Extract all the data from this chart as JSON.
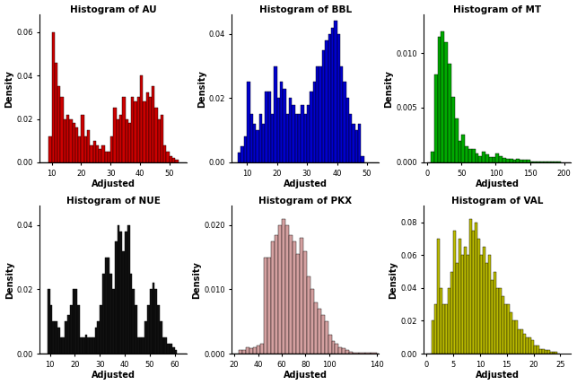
{
  "subplots": [
    {
      "title": "Histogram of AU",
      "xlabel": "Adjusted",
      "ylabel": "Density",
      "color": "#CC0000",
      "edgecolor": "#000000",
      "xlim": [
        6,
        56
      ],
      "ylim": [
        0,
        0.068
      ],
      "yticks": [
        0.0,
        0.02,
        0.04,
        0.06
      ],
      "ytick_labels": [
        "0.00",
        "0.02",
        "0.04",
        "0.06"
      ],
      "xticks": [
        10,
        20,
        30,
        40,
        50
      ],
      "bin_edges": [
        6,
        7,
        8,
        9,
        10,
        11,
        12,
        13,
        14,
        15,
        16,
        17,
        18,
        19,
        20,
        21,
        22,
        23,
        24,
        25,
        26,
        27,
        28,
        29,
        30,
        31,
        32,
        33,
        34,
        35,
        36,
        37,
        38,
        39,
        40,
        41,
        42,
        43,
        44,
        45,
        46,
        47,
        48,
        49,
        50,
        51,
        52,
        53,
        54,
        55,
        56
      ],
      "bin_heights": [
        0.0,
        0.0,
        0.0,
        0.012,
        0.06,
        0.046,
        0.035,
        0.03,
        0.02,
        0.022,
        0.02,
        0.018,
        0.016,
        0.012,
        0.022,
        0.012,
        0.015,
        0.008,
        0.01,
        0.008,
        0.006,
        0.008,
        0.005,
        0.005,
        0.012,
        0.025,
        0.02,
        0.022,
        0.03,
        0.02,
        0.018,
        0.03,
        0.028,
        0.03,
        0.04,
        0.028,
        0.032,
        0.03,
        0.035,
        0.025,
        0.02,
        0.022,
        0.008,
        0.005,
        0.003,
        0.002,
        0.001,
        0.0,
        0.0,
        0.0
      ]
    },
    {
      "title": "Histogram of BBL",
      "xlabel": "Adjusted",
      "ylabel": "Density",
      "color": "#0000CC",
      "edgecolor": "#000000",
      "xlim": [
        5,
        54
      ],
      "ylim": [
        0,
        0.046
      ],
      "yticks": [
        0.0,
        0.02,
        0.04
      ],
      "ytick_labels": [
        "0.00",
        "0.02",
        "0.04"
      ],
      "xticks": [
        10,
        20,
        30,
        40,
        50
      ],
      "bin_edges": [
        5,
        6,
        7,
        8,
        9,
        10,
        11,
        12,
        13,
        14,
        15,
        16,
        17,
        18,
        19,
        20,
        21,
        22,
        23,
        24,
        25,
        26,
        27,
        28,
        29,
        30,
        31,
        32,
        33,
        34,
        35,
        36,
        37,
        38,
        39,
        40,
        41,
        42,
        43,
        44,
        45,
        46,
        47,
        48,
        49,
        50,
        51,
        52,
        53,
        54
      ],
      "bin_heights": [
        0.0,
        0.0,
        0.003,
        0.005,
        0.008,
        0.025,
        0.015,
        0.012,
        0.01,
        0.015,
        0.012,
        0.022,
        0.022,
        0.015,
        0.03,
        0.02,
        0.025,
        0.023,
        0.015,
        0.02,
        0.018,
        0.015,
        0.015,
        0.018,
        0.015,
        0.018,
        0.022,
        0.025,
        0.03,
        0.03,
        0.035,
        0.038,
        0.04,
        0.042,
        0.044,
        0.04,
        0.03,
        0.025,
        0.02,
        0.015,
        0.012,
        0.01,
        0.012,
        0.002,
        0.0,
        0.0,
        0.0,
        0.0,
        0.0
      ]
    },
    {
      "title": "Histogram of MT",
      "xlabel": "Adjusted",
      "ylabel": "Density",
      "color": "#00AA00",
      "edgecolor": "#000000",
      "xlim": [
        -5,
        210
      ],
      "ylim": [
        0,
        0.0135
      ],
      "yticks": [
        0.0,
        0.005,
        0.01
      ],
      "ytick_labels": [
        "0.000",
        "0.005",
        "0.010"
      ],
      "xticks": [
        0,
        50,
        100,
        150,
        200
      ],
      "bin_edges": [
        0,
        5,
        10,
        15,
        20,
        25,
        30,
        35,
        40,
        45,
        50,
        55,
        60,
        65,
        70,
        75,
        80,
        85,
        90,
        95,
        100,
        105,
        110,
        115,
        120,
        125,
        130,
        135,
        140,
        145,
        150,
        155,
        160,
        165,
        170,
        175,
        180,
        185,
        190,
        195,
        200,
        205,
        210
      ],
      "bin_heights": [
        0.0,
        0.001,
        0.008,
        0.0115,
        0.012,
        0.011,
        0.009,
        0.006,
        0.004,
        0.002,
        0.0025,
        0.0015,
        0.0012,
        0.0012,
        0.0008,
        0.0006,
        0.001,
        0.0007,
        0.0005,
        0.0005,
        0.0008,
        0.0006,
        0.0004,
        0.0003,
        0.0003,
        0.0002,
        0.0003,
        0.0002,
        0.0002,
        0.0002,
        0.0001,
        0.0001,
        0.0001,
        0.0001,
        0.0001,
        0.0001,
        0.0001,
        0.0001,
        0.0001,
        0.0,
        0.0,
        0.0
      ]
    },
    {
      "title": "Histogram of NUE",
      "xlabel": "Adjusted",
      "ylabel": "Density",
      "color": "#111111",
      "edgecolor": "#000000",
      "xlim": [
        6,
        65
      ],
      "ylim": [
        0,
        0.046
      ],
      "yticks": [
        0.0,
        0.02,
        0.04
      ],
      "ytick_labels": [
        "0.00",
        "0.02",
        "0.04"
      ],
      "xticks": [
        10,
        20,
        30,
        40,
        50,
        60
      ],
      "bin_edges": [
        6,
        7,
        8,
        9,
        10,
        11,
        12,
        13,
        14,
        15,
        16,
        17,
        18,
        19,
        20,
        21,
        22,
        23,
        24,
        25,
        26,
        27,
        28,
        29,
        30,
        31,
        32,
        33,
        34,
        35,
        36,
        37,
        38,
        39,
        40,
        41,
        42,
        43,
        44,
        45,
        46,
        47,
        48,
        49,
        50,
        51,
        52,
        53,
        54,
        55,
        56,
        57,
        58,
        59,
        60,
        61,
        62,
        63,
        64,
        65
      ],
      "bin_heights": [
        0.0,
        0.0,
        0.0,
        0.02,
        0.015,
        0.01,
        0.01,
        0.008,
        0.005,
        0.005,
        0.01,
        0.012,
        0.015,
        0.02,
        0.02,
        0.015,
        0.005,
        0.005,
        0.006,
        0.005,
        0.005,
        0.005,
        0.008,
        0.01,
        0.015,
        0.025,
        0.03,
        0.03,
        0.025,
        0.02,
        0.035,
        0.04,
        0.038,
        0.032,
        0.038,
        0.04,
        0.025,
        0.02,
        0.015,
        0.005,
        0.005,
        0.005,
        0.01,
        0.015,
        0.02,
        0.022,
        0.02,
        0.015,
        0.01,
        0.005,
        0.005,
        0.003,
        0.003,
        0.002,
        0.001,
        0.0,
        0.0,
        0.0,
        0.0
      ]
    },
    {
      "title": "Histogram of PKX",
      "xlabel": "Adjusted",
      "ylabel": "Density",
      "color": "#D4A0A0",
      "edgecolor": "#000000",
      "xlim": [
        18,
        142
      ],
      "ylim": [
        0,
        0.023
      ],
      "yticks": [
        0.0,
        0.01,
        0.02
      ],
      "ytick_labels": [
        "0.000",
        "0.010",
        "0.020"
      ],
      "xticks": [
        20,
        40,
        60,
        80,
        100,
        140
      ],
      "bin_edges": [
        18,
        21,
        24,
        27,
        30,
        33,
        36,
        39,
        42,
        45,
        48,
        51,
        54,
        57,
        60,
        63,
        66,
        69,
        72,
        75,
        78,
        81,
        84,
        87,
        90,
        93,
        96,
        99,
        102,
        105,
        108,
        111,
        114,
        117,
        120,
        125,
        130,
        135,
        140,
        142
      ],
      "bin_heights": [
        0.0,
        0.0,
        0.0005,
        0.0005,
        0.001,
        0.0008,
        0.001,
        0.0012,
        0.0015,
        0.015,
        0.015,
        0.0175,
        0.0185,
        0.02,
        0.021,
        0.02,
        0.0185,
        0.0175,
        0.0155,
        0.018,
        0.016,
        0.012,
        0.01,
        0.008,
        0.007,
        0.006,
        0.005,
        0.003,
        0.002,
        0.0015,
        0.001,
        0.0008,
        0.0005,
        0.0003,
        0.0002,
        0.0002,
        0.0001,
        0.0001,
        0.0
      ]
    },
    {
      "title": "Histogram of VAL",
      "xlabel": "Adjusted",
      "ylabel": "Density",
      "color": "#BBBB00",
      "edgecolor": "#000000",
      "xlim": [
        -0.5,
        27
      ],
      "ylim": [
        0,
        0.09
      ],
      "yticks": [
        0.0,
        0.02,
        0.04,
        0.06,
        0.08
      ],
      "ytick_labels": [
        "0.00",
        "0.02",
        "0.04",
        "0.06",
        "0.08"
      ],
      "xticks": [
        0,
        5,
        10,
        15,
        20,
        25
      ],
      "bin_edges": [
        0,
        0.5,
        1,
        1.5,
        2,
        2.5,
        3,
        3.5,
        4,
        4.5,
        5,
        5.5,
        6,
        6.5,
        7,
        7.5,
        8,
        8.5,
        9,
        9.5,
        10,
        10.5,
        11,
        11.5,
        12,
        12.5,
        13,
        13.5,
        14,
        14.5,
        15,
        15.5,
        16,
        16.5,
        17,
        17.5,
        18,
        18.5,
        19,
        19.5,
        20,
        20.5,
        21,
        21.5,
        22,
        22.5,
        23,
        23.5,
        24,
        24.5,
        25
      ],
      "bin_heights": [
        0.0,
        0.0,
        0.02,
        0.03,
        0.07,
        0.04,
        0.03,
        0.03,
        0.04,
        0.05,
        0.075,
        0.055,
        0.07,
        0.06,
        0.065,
        0.06,
        0.082,
        0.075,
        0.08,
        0.07,
        0.06,
        0.065,
        0.055,
        0.06,
        0.045,
        0.05,
        0.04,
        0.04,
        0.035,
        0.03,
        0.03,
        0.025,
        0.02,
        0.02,
        0.015,
        0.015,
        0.012,
        0.01,
        0.01,
        0.008,
        0.005,
        0.005,
        0.003,
        0.003,
        0.002,
        0.002,
        0.001,
        0.001,
        0.001,
        0.0
      ]
    }
  ]
}
